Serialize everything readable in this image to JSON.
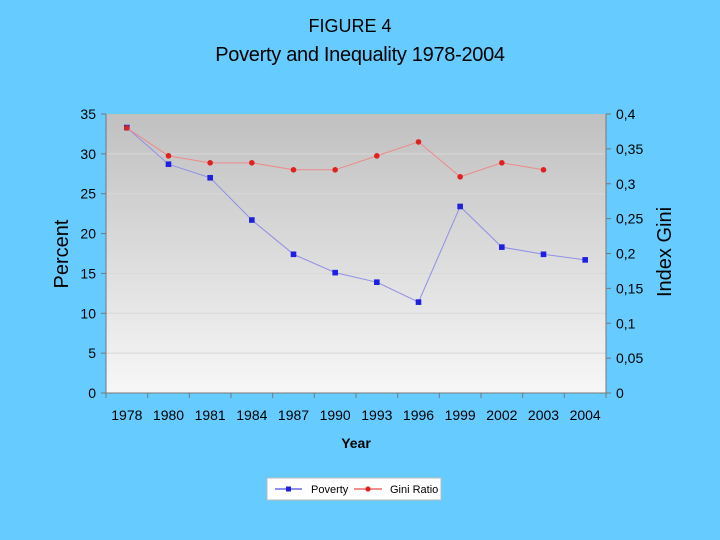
{
  "figure_label": "FIGURE 4",
  "chart_data": {
    "type": "line",
    "title": "Poverty and Inequality 1978-2004",
    "xlabel": "Year",
    "ylabel": "Percent",
    "ylabel_right": "Index Gini",
    "categories": [
      "1978",
      "1980",
      "1981",
      "1984",
      "1987",
      "1990",
      "1993",
      "1996",
      "1999",
      "2002",
      "2003",
      "2004"
    ],
    "ylim": [
      0,
      35
    ],
    "ylim_right": [
      0,
      0.4
    ],
    "y_ticks": [
      "0",
      "5",
      "10",
      "15",
      "20",
      "25",
      "30",
      "35"
    ],
    "y_ticks_right": [
      "0",
      "0,05",
      "0,1",
      "0,15",
      "0,2",
      "0,25",
      "0,3",
      "0,35",
      "0,4"
    ],
    "grid": true,
    "legend_position": "bottom",
    "series": [
      {
        "name": "Poverty",
        "axis": "left",
        "color": "#1f1fe0",
        "marker": "square",
        "values": [
          33.3,
          28.7,
          27,
          21.7,
          17.4,
          15.1,
          13.9,
          11.4,
          23.4,
          18.3,
          17.4,
          16.7
        ]
      },
      {
        "name": "Gini Ratio",
        "axis": "right",
        "color": "#dd2222",
        "marker": "circle",
        "values": [
          0.38,
          0.34,
          0.33,
          0.33,
          0.32,
          0.32,
          0.34,
          0.36,
          0.31,
          0.33,
          0.32,
          null
        ]
      }
    ]
  }
}
